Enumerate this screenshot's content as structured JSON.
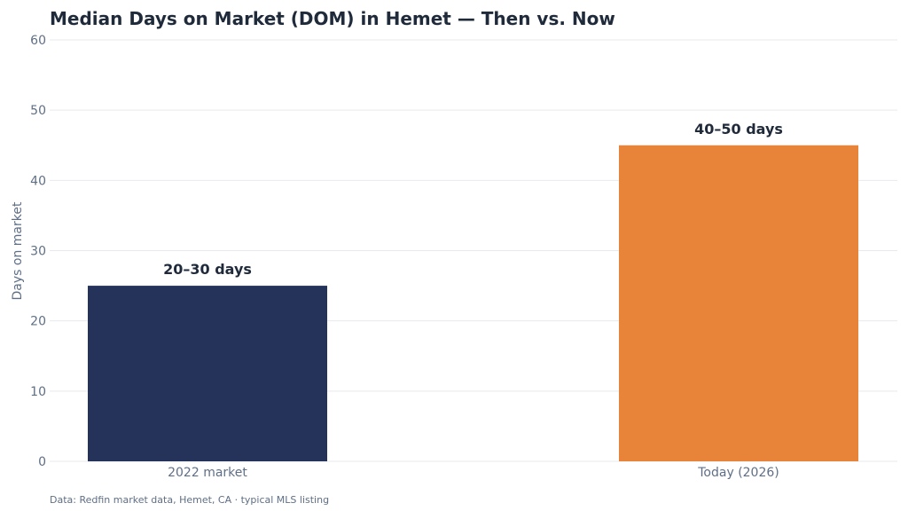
{
  "chart_data": {
    "type": "bar",
    "title": "Median Days on Market (DOM) in Hemet — Then vs. Now",
    "ylabel": "Days on market",
    "xlabel": "",
    "categories": [
      "2022 market",
      "Today (2026)"
    ],
    "values": [
      25,
      45
    ],
    "data_labels": [
      "20–30 days",
      "40–50 days"
    ],
    "bar_colors": [
      "#25325a",
      "#e8833a"
    ],
    "ylim": [
      0,
      60
    ],
    "yticks": [
      0,
      10,
      20,
      30,
      40,
      50,
      60
    ],
    "grid": true,
    "legend": "none"
  },
  "source_note": "Data: Redfin market data, Hemet, CA · typical MLS listing"
}
